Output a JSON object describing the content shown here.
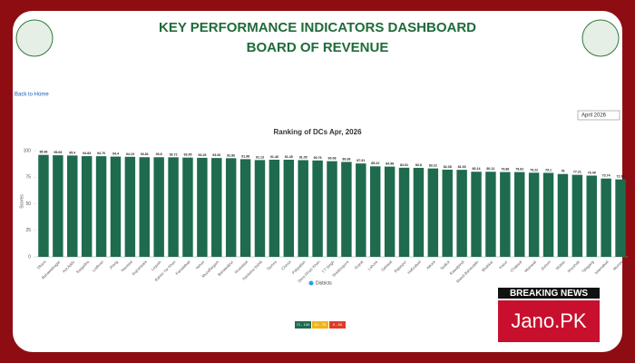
{
  "header": {
    "title": "KEY PERFORMANCE INDICATORS DASHBOARD",
    "subtitle": "BOARD OF REVENUE"
  },
  "nav": {
    "back_link": "Back to Home"
  },
  "filter": {
    "month": "April 2026"
  },
  "chart_data": {
    "type": "bar",
    "title": "Ranking of DCs Apr, 2026",
    "y_label": "Scores",
    "categories": [
      "Okara",
      "Bahawalnagar",
      "Kot Addu",
      "Sargodha",
      "Lodhran",
      "Jhang",
      "Narowal",
      "Gujranwala",
      "Layyah",
      "Rahim Yar Khan",
      "Faisalabad",
      "Vehari",
      "Muzaffargarh",
      "Bahawalpur",
      "Khanewal",
      "Nankana Sahib",
      "Taunsa",
      "Chiniot",
      "Pakpattan",
      "Dera Ghazi Khan",
      "T.T Singh",
      "Sheikhupura",
      "Gujrat",
      "Lahore",
      "Sahiwal",
      "Rajanpur",
      "Hafizabad",
      "Attock",
      "Sialkot",
      "Rawalpindi",
      "Mandi Bahauddin",
      "Bhakkar",
      "Kasur",
      "Chakwal",
      "Mianwali",
      "Jhelum",
      "Multan",
      "Khushab",
      "Talagang",
      "Islamabad",
      "Murree"
    ],
    "series": [
      {
        "name": "Districts",
        "color": "#1e6b4e",
        "values": [
          95.98,
          95.65,
          95.4,
          94.83,
          94.76,
          94.4,
          94.19,
          93.81,
          93.8,
          93.72,
          93.45,
          93.25,
          93.06,
          92.86,
          91.98,
          91.13,
          91.46,
          91.45,
          91.05,
          90.76,
          90.08,
          89.38,
          87.91,
          85.22,
          84.98,
          83.91,
          83.8,
          83.22,
          82.08,
          81.93,
          80.14,
          80.12,
          79.86,
          79.81,
          79.22,
          79.1,
          78.0,
          77.21,
          76.49,
          73.74,
          72.94
        ]
      }
    ],
    "ylim": [
      0,
      100
    ],
    "yticks": [
      0,
      25,
      50,
      75,
      100
    ],
    "grid": false,
    "ranges": [
      {
        "label": "71 - 100",
        "color": "#1e6b4e"
      },
      {
        "label": "51 - 70",
        "color": "#f0b418"
      },
      {
        "label": "0 - 50",
        "color": "#e03a2a"
      }
    ]
  },
  "badge": {
    "top": "BREAKING NEWS",
    "bottom": "Jano.PK"
  }
}
